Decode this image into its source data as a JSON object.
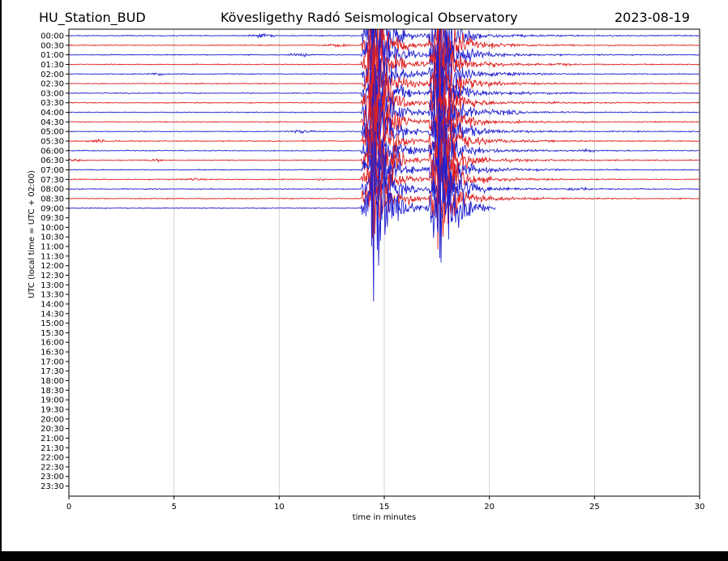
{
  "header": {
    "station": "HU_Station_BUD",
    "observatory": "Kövesligethy Radó Seismological Observatory",
    "date": "2023-08-19"
  },
  "chart_data": {
    "type": "line",
    "title": "Kövesligethy Radó Seismological Observatory",
    "xlabel": "time in minutes",
    "ylabel": "UTC (local time = UTC + 02:00)",
    "xlim": [
      0,
      30
    ],
    "xticks": [
      "0",
      "5",
      "10",
      "15",
      "20",
      "25",
      "30"
    ],
    "xtick_values": [
      0,
      5,
      10,
      15,
      20,
      25,
      30
    ],
    "yticks": [
      "00:00",
      "00:30",
      "01:00",
      "01:30",
      "02:00",
      "02:30",
      "03:00",
      "03:30",
      "04:00",
      "04:30",
      "05:00",
      "05:30",
      "06:00",
      "06:30",
      "07:00",
      "07:30",
      "08:00",
      "08:30",
      "09:00",
      "09:30",
      "10:00",
      "10:30",
      "11:00",
      "11:30",
      "12:00",
      "12:30",
      "13:00",
      "13:30",
      "14:00",
      "14:30",
      "15:00",
      "15:30",
      "16:00",
      "16:30",
      "17:00",
      "17:30",
      "18:00",
      "18:30",
      "19:00",
      "19:30",
      "20:00",
      "20:30",
      "21:00",
      "21:30",
      "22:00",
      "22:30",
      "23:00",
      "23:30"
    ],
    "grid": "vertical at x ticks",
    "trace_colors": [
      "#2020d0",
      "#e02020"
    ],
    "recorded_until": 20.3,
    "events": [
      {
        "start": 13.9,
        "peak": 14.4
      },
      {
        "start": 17.1,
        "peak": 17.5
      }
    ]
  }
}
